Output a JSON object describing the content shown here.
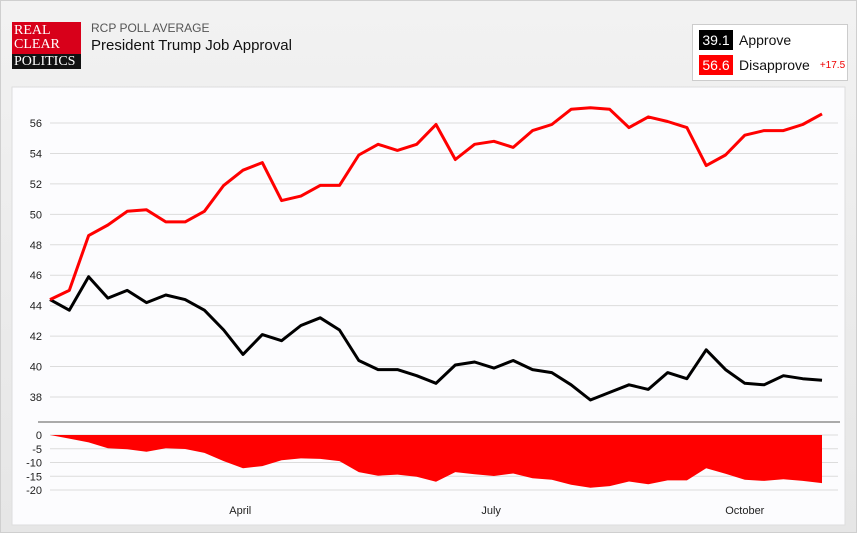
{
  "header": {
    "kicker": "RCP POLL AVERAGE",
    "title": "President Trump Job Approval",
    "logo_text": [
      "REAL",
      "CLEAR",
      "POLITICS"
    ]
  },
  "legend": {
    "approve": {
      "value": "39.1",
      "label": "Approve",
      "color": "#000000"
    },
    "disapprove": {
      "value": "56.6",
      "label": "Disapprove",
      "color": "#ff0000"
    },
    "spread": "+17.5"
  },
  "chart_data": [
    {
      "type": "line",
      "x_type": "date",
      "x": [
        "2017-01-22",
        "2017-01-29",
        "2017-02-05",
        "2017-02-12",
        "2017-02-19",
        "2017-02-26",
        "2017-03-05",
        "2017-03-12",
        "2017-03-19",
        "2017-03-26",
        "2017-04-02",
        "2017-04-09",
        "2017-04-16",
        "2017-04-23",
        "2017-04-30",
        "2017-05-07",
        "2017-05-14",
        "2017-05-21",
        "2017-05-28",
        "2017-06-04",
        "2017-06-11",
        "2017-06-18",
        "2017-06-25",
        "2017-07-02",
        "2017-07-09",
        "2017-07-16",
        "2017-07-23",
        "2017-07-30",
        "2017-08-06",
        "2017-08-13",
        "2017-08-20",
        "2017-08-27",
        "2017-09-03",
        "2017-09-10",
        "2017-09-17",
        "2017-09-24",
        "2017-10-01",
        "2017-10-08",
        "2017-10-15",
        "2017-10-22",
        "2017-10-29"
      ],
      "series": [
        {
          "name": "Approve",
          "color": "#000000",
          "values": [
            44.4,
            43.7,
            45.9,
            44.5,
            45.0,
            44.2,
            44.7,
            44.4,
            43.7,
            42.4,
            40.8,
            42.1,
            41.7,
            42.7,
            43.2,
            42.4,
            40.4,
            39.8,
            39.8,
            39.4,
            38.9,
            40.1,
            40.3,
            39.9,
            40.4,
            39.8,
            39.6,
            38.8,
            37.8,
            38.3,
            38.8,
            38.5,
            39.6,
            39.2,
            41.1,
            39.8,
            38.9,
            38.8,
            39.4,
            39.2,
            39.1
          ]
        },
        {
          "name": "Disapprove",
          "color": "#ff0000",
          "values": [
            44.4,
            45.0,
            48.6,
            49.3,
            50.2,
            50.3,
            49.5,
            49.5,
            50.2,
            51.9,
            52.9,
            53.4,
            50.9,
            51.2,
            51.9,
            51.9,
            53.9,
            54.6,
            54.2,
            54.6,
            55.9,
            53.6,
            54.6,
            54.8,
            54.4,
            55.5,
            55.9,
            56.9,
            57.0,
            56.9,
            55.7,
            56.4,
            56.1,
            55.7,
            53.2,
            53.9,
            55.2,
            55.5,
            55.5,
            55.9,
            56.6
          ]
        }
      ],
      "yticks": [
        38,
        40,
        42,
        44,
        46,
        48,
        50,
        52,
        54,
        56
      ],
      "ylim": [
        37,
        57.8
      ],
      "grid": true
    },
    {
      "type": "area",
      "derived": "approve minus disapprove",
      "color": "#ff0000",
      "yticks": [
        0,
        -5,
        -10,
        -15,
        -20
      ],
      "ylim": [
        -20,
        0
      ],
      "xtick_labels": [
        {
          "date": "2017-04-01",
          "label": "April"
        },
        {
          "date": "2017-07-01",
          "label": "July"
        },
        {
          "date": "2017-10-01",
          "label": "October"
        }
      ],
      "grid": true
    }
  ]
}
